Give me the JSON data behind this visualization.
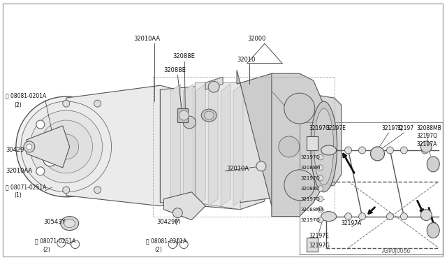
{
  "bg_color": "#ffffff",
  "line_color": "#333333",
  "text_color": "#111111",
  "ref_code": "A3P0J0066",
  "fig_width": 6.4,
  "fig_height": 3.72,
  "dpi": 100,
  "xlim": [
    0,
    640
  ],
  "ylim": [
    0,
    372
  ]
}
